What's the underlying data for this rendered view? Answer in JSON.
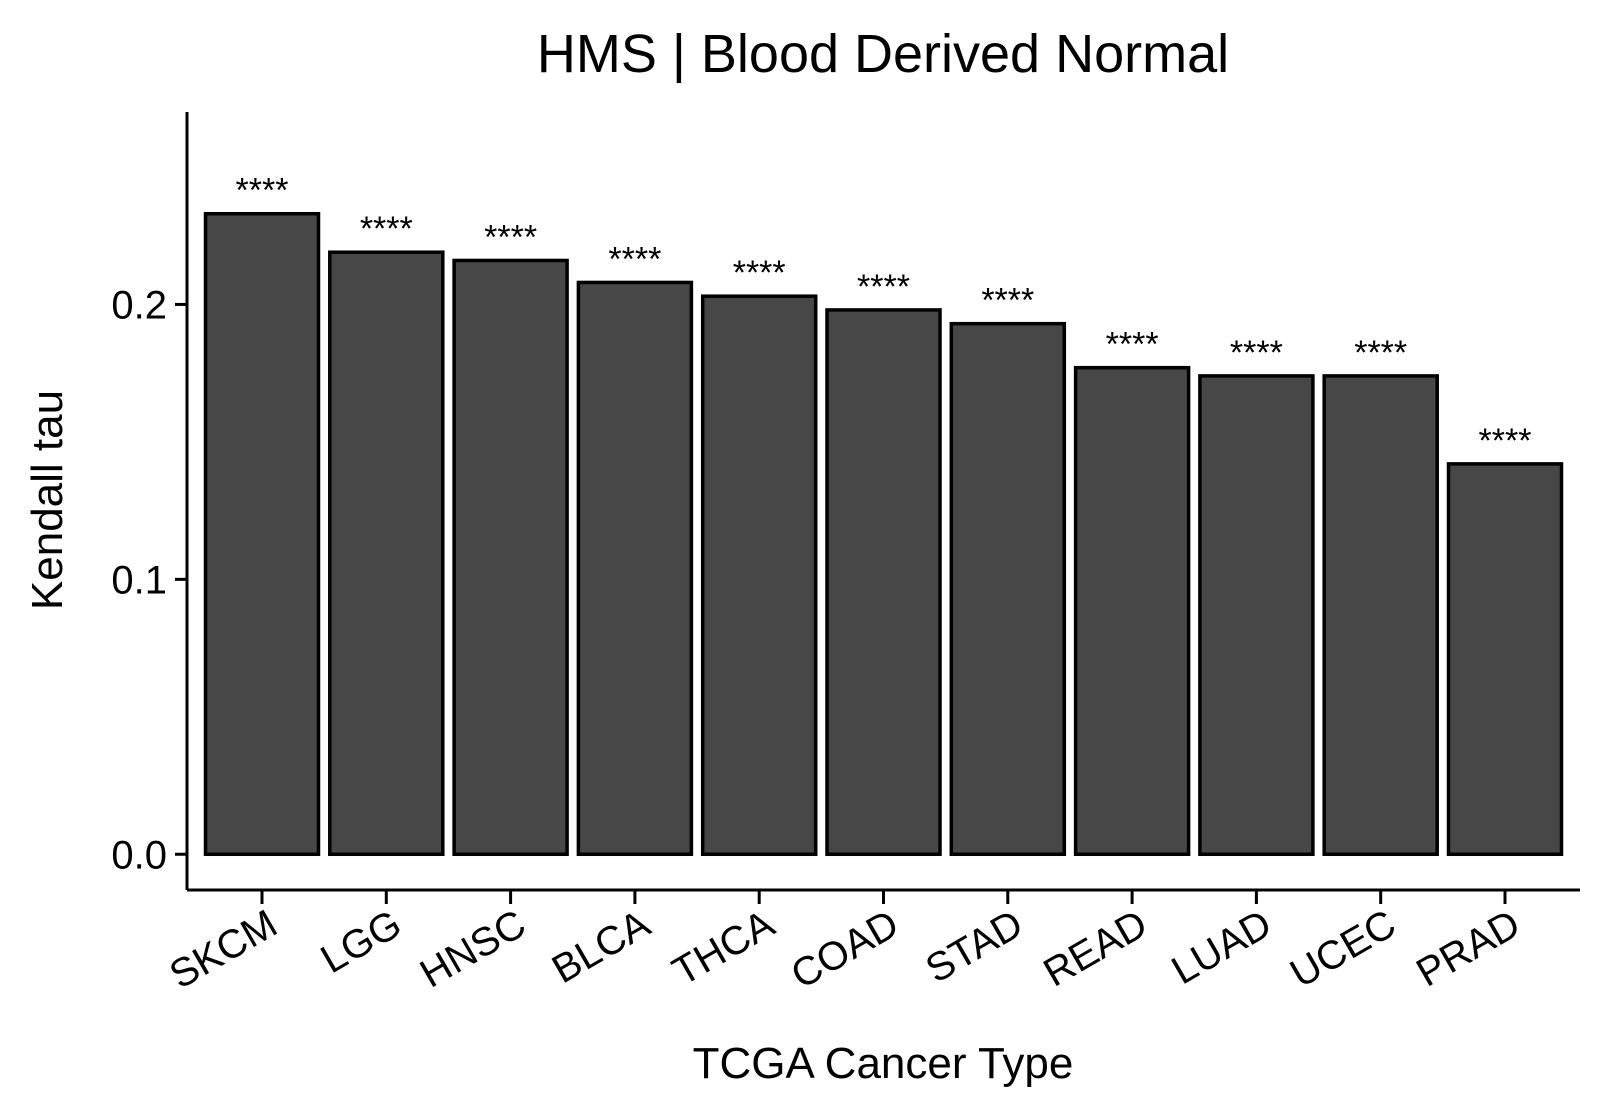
{
  "chart_data": {
    "type": "bar",
    "title": "HMS | Blood Derived Normal",
    "xlabel": "TCGA Cancer Type",
    "ylabel": "Kendall tau",
    "ylim": [
      -0.013,
      0.27
    ],
    "yticks": [
      0.0,
      0.1,
      0.2
    ],
    "ytick_labels": [
      "0.0",
      "0.1",
      "0.2"
    ],
    "categories": [
      "SKCM",
      "LGG",
      "HNSC",
      "BLCA",
      "THCA",
      "COAD",
      "STAD",
      "READ",
      "LUAD",
      "UCEC",
      "PRAD"
    ],
    "values": [
      0.233,
      0.219,
      0.216,
      0.208,
      0.203,
      0.198,
      0.193,
      0.177,
      0.174,
      0.174,
      0.142
    ],
    "annotations": [
      "****",
      "****",
      "****",
      "****",
      "****",
      "****",
      "****",
      "****",
      "****",
      "****",
      "****"
    ],
    "bar_color": "#474747",
    "bar_edge_color": "#000000",
    "grid": false,
    "legend": "none"
  }
}
